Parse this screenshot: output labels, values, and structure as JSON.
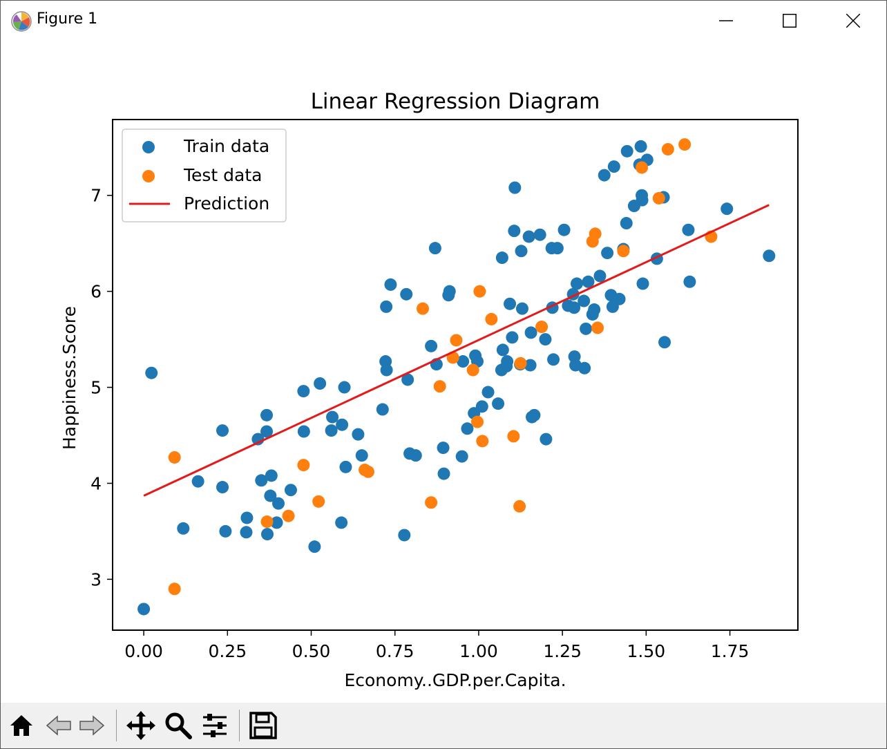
{
  "window": {
    "title": "Figure 1",
    "icons": {
      "app": "matplotlib-logo-icon",
      "minimize": "minimize-icon",
      "maximize": "maximize-icon",
      "close": "close-icon"
    }
  },
  "toolbar": {
    "buttons": [
      {
        "name": "home-button",
        "icon": "home-icon",
        "enabled": true
      },
      {
        "name": "back-button",
        "icon": "back-arrow-icon",
        "enabled": false
      },
      {
        "name": "forward-button",
        "icon": "forward-arrow-icon",
        "enabled": false
      },
      {
        "name": "pan-button",
        "icon": "move-icon",
        "enabled": true
      },
      {
        "name": "zoom-button",
        "icon": "magnifier-icon",
        "enabled": true
      },
      {
        "name": "configure-subplots-button",
        "icon": "sliders-icon",
        "enabled": true
      },
      {
        "name": "save-button",
        "icon": "floppy-disk-icon",
        "enabled": true
      }
    ]
  },
  "chart_data": {
    "type": "scatter",
    "title": "Linear Regression Diagram",
    "xlabel": "Economy..GDP.per.Capita.",
    "ylabel": "Happiness.Score",
    "xlim": [
      -0.093,
      1.953
    ],
    "ylim": [
      2.47,
      7.79
    ],
    "xticks": [
      0.0,
      0.25,
      0.5,
      0.75,
      1.0,
      1.25,
      1.5,
      1.75
    ],
    "xtick_labels": [
      "0.00",
      "0.25",
      "0.50",
      "0.75",
      "1.00",
      "1.25",
      "1.50",
      "1.75"
    ],
    "yticks": [
      3,
      4,
      5,
      6,
      7
    ],
    "ytick_labels": [
      "3",
      "4",
      "5",
      "6",
      "7"
    ],
    "grid": false,
    "legend_position": "top-left",
    "series": [
      {
        "name": "Train data",
        "kind": "scatter",
        "color": "#1f77b4",
        "points": [
          [
            0.0,
            2.69
          ],
          [
            0.023,
            5.15
          ],
          [
            0.118,
            3.53
          ],
          [
            0.162,
            4.02
          ],
          [
            0.235,
            4.55
          ],
          [
            0.235,
            3.96
          ],
          [
            0.244,
            3.5
          ],
          [
            0.306,
            3.49
          ],
          [
            0.308,
            3.64
          ],
          [
            0.341,
            4.46
          ],
          [
            0.351,
            4.03
          ],
          [
            0.367,
            4.54
          ],
          [
            0.367,
            4.71
          ],
          [
            0.369,
            3.47
          ],
          [
            0.378,
            3.87
          ],
          [
            0.381,
            4.08
          ],
          [
            0.397,
            3.59
          ],
          [
            0.402,
            3.79
          ],
          [
            0.439,
            3.93
          ],
          [
            0.477,
            4.96
          ],
          [
            0.478,
            4.54
          ],
          [
            0.51,
            3.34
          ],
          [
            0.526,
            5.04
          ],
          [
            0.56,
            4.55
          ],
          [
            0.563,
            4.69
          ],
          [
            0.59,
            3.59
          ],
          [
            0.592,
            4.61
          ],
          [
            0.599,
            5.0
          ],
          [
            0.603,
            4.17
          ],
          [
            0.64,
            4.51
          ],
          [
            0.651,
            4.29
          ],
          [
            0.713,
            4.77
          ],
          [
            0.722,
            5.27
          ],
          [
            0.724,
            5.84
          ],
          [
            0.725,
            5.18
          ],
          [
            0.737,
            6.07
          ],
          [
            0.778,
            3.46
          ],
          [
            0.784,
            5.97
          ],
          [
            0.788,
            5.08
          ],
          [
            0.794,
            4.31
          ],
          [
            0.812,
            4.29
          ],
          [
            0.858,
            5.43
          ],
          [
            0.87,
            6.45
          ],
          [
            0.874,
            5.24
          ],
          [
            0.894,
            4.37
          ],
          [
            0.896,
            4.1
          ],
          [
            0.91,
            5.96
          ],
          [
            0.913,
            6.0
          ],
          [
            0.95,
            4.28
          ],
          [
            0.953,
            5.27
          ],
          [
            0.966,
            4.57
          ],
          [
            0.986,
            4.73
          ],
          [
            0.99,
            5.33
          ],
          [
            0.996,
            5.27
          ],
          [
            1.01,
            4.8
          ],
          [
            1.028,
            4.95
          ],
          [
            1.058,
            4.83
          ],
          [
            1.068,
            5.18
          ],
          [
            1.07,
            6.35
          ],
          [
            1.072,
            5.39
          ],
          [
            1.083,
            5.22
          ],
          [
            1.085,
            5.27
          ],
          [
            1.093,
            5.87
          ],
          [
            1.1,
            5.52
          ],
          [
            1.106,
            6.63
          ],
          [
            1.108,
            7.08
          ],
          [
            1.124,
            5.24
          ],
          [
            1.127,
            6.42
          ],
          [
            1.13,
            5.82
          ],
          [
            1.15,
            6.57
          ],
          [
            1.154,
            5.23
          ],
          [
            1.156,
            5.57
          ],
          [
            1.159,
            4.69
          ],
          [
            1.166,
            4.71
          ],
          [
            1.183,
            6.59
          ],
          [
            1.199,
            5.5
          ],
          [
            1.201,
            4.46
          ],
          [
            1.218,
            6.45
          ],
          [
            1.22,
            5.83
          ],
          [
            1.223,
            5.29
          ],
          [
            1.235,
            6.45
          ],
          [
            1.255,
            6.64
          ],
          [
            1.267,
            5.85
          ],
          [
            1.282,
            5.97
          ],
          [
            1.285,
            5.83
          ],
          [
            1.286,
            5.32
          ],
          [
            1.289,
            5.23
          ],
          [
            1.293,
            6.08
          ],
          [
            1.314,
            5.9
          ],
          [
            1.316,
            5.2
          ],
          [
            1.32,
            5.61
          ],
          [
            1.327,
            6.1
          ],
          [
            1.34,
            5.76
          ],
          [
            1.345,
            5.81
          ],
          [
            1.362,
            6.16
          ],
          [
            1.375,
            7.21
          ],
          [
            1.384,
            6.4
          ],
          [
            1.395,
            5.96
          ],
          [
            1.4,
            5.84
          ],
          [
            1.404,
            7.3
          ],
          [
            1.42,
            5.92
          ],
          [
            1.432,
            6.44
          ],
          [
            1.441,
            6.71
          ],
          [
            1.443,
            7.46
          ],
          [
            1.464,
            6.89
          ],
          [
            1.48,
            7.32
          ],
          [
            1.484,
            7.51
          ],
          [
            1.487,
            7.0
          ],
          [
            1.488,
            6.95
          ],
          [
            1.49,
            6.08
          ],
          [
            1.503,
            7.37
          ],
          [
            1.532,
            6.34
          ],
          [
            1.552,
            6.98
          ],
          [
            1.555,
            5.47
          ],
          [
            1.626,
            6.64
          ],
          [
            1.63,
            6.1
          ],
          [
            1.741,
            6.86
          ],
          [
            1.867,
            6.37
          ]
        ]
      },
      {
        "name": "Test data",
        "kind": "scatter",
        "color": "#ff7f0e",
        "points": [
          [
            0.092,
            4.27
          ],
          [
            0.092,
            2.9
          ],
          [
            0.368,
            3.6
          ],
          [
            0.432,
            3.66
          ],
          [
            0.477,
            4.19
          ],
          [
            0.522,
            3.81
          ],
          [
            0.66,
            4.14
          ],
          [
            0.67,
            4.12
          ],
          [
            0.833,
            5.82
          ],
          [
            0.858,
            3.8
          ],
          [
            0.884,
            5.01
          ],
          [
            0.923,
            5.31
          ],
          [
            0.933,
            5.49
          ],
          [
            0.983,
            5.18
          ],
          [
            0.996,
            4.64
          ],
          [
            1.003,
            6.0
          ],
          [
            1.011,
            4.44
          ],
          [
            1.038,
            5.71
          ],
          [
            1.104,
            4.49
          ],
          [
            1.122,
            3.76
          ],
          [
            1.125,
            5.25
          ],
          [
            1.188,
            5.63
          ],
          [
            1.34,
            6.52
          ],
          [
            1.348,
            6.6
          ],
          [
            1.355,
            5.62
          ],
          [
            1.432,
            6.42
          ],
          [
            1.487,
            7.29
          ],
          [
            1.538,
            6.97
          ],
          [
            1.565,
            7.48
          ],
          [
            1.615,
            7.53
          ],
          [
            1.694,
            6.57
          ]
        ]
      },
      {
        "name": "Prediction",
        "kind": "line",
        "color": "#e31a1c",
        "x": [
          0.0,
          1.867
        ],
        "y": [
          3.87,
          6.9
        ]
      }
    ]
  }
}
